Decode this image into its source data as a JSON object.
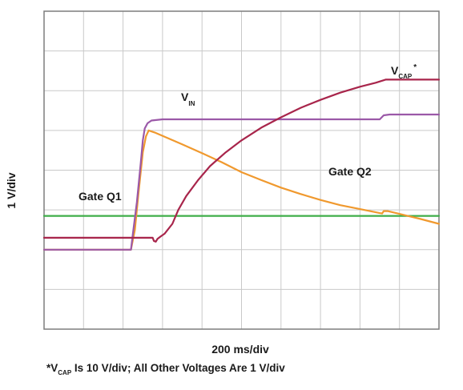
{
  "chart_data": {
    "type": "line",
    "title": "",
    "xlabel": "200 ms/div",
    "ylabel": "1 V/div",
    "grid": true,
    "divisions": {
      "x": 10,
      "y": 8
    },
    "xlim": [
      0,
      10
    ],
    "ylim": [
      0,
      8
    ],
    "series": [
      {
        "name": "V_CAP*",
        "label_main": "V",
        "label_sub": "CAP",
        "label_sup": "*",
        "color": "#a8254b",
        "points": [
          [
            0,
            2.3
          ],
          [
            2.2,
            2.3
          ],
          [
            2.6,
            2.3
          ],
          [
            2.75,
            2.3
          ],
          [
            2.78,
            2.22
          ],
          [
            2.83,
            2.2
          ],
          [
            2.87,
            2.27
          ],
          [
            2.95,
            2.33
          ],
          [
            3.05,
            2.4
          ],
          [
            3.25,
            2.65
          ],
          [
            3.4,
            3.0
          ],
          [
            3.6,
            3.35
          ],
          [
            3.9,
            3.75
          ],
          [
            4.2,
            4.1
          ],
          [
            4.6,
            4.45
          ],
          [
            5.0,
            4.75
          ],
          [
            5.5,
            5.07
          ],
          [
            6.0,
            5.33
          ],
          [
            6.5,
            5.57
          ],
          [
            7.0,
            5.77
          ],
          [
            7.5,
            5.95
          ],
          [
            8.0,
            6.1
          ],
          [
            8.4,
            6.2
          ],
          [
            8.65,
            6.28
          ],
          [
            10,
            6.28
          ]
        ]
      },
      {
        "name": "V_IN",
        "label_main": "V",
        "label_sub": "IN",
        "color": "#9b59a8",
        "points": [
          [
            0,
            2.0
          ],
          [
            2.2,
            2.0
          ],
          [
            2.25,
            2.4
          ],
          [
            2.35,
            3.2
          ],
          [
            2.45,
            4.2
          ],
          [
            2.5,
            4.75
          ],
          [
            2.55,
            5.05
          ],
          [
            2.62,
            5.18
          ],
          [
            2.72,
            5.25
          ],
          [
            3.0,
            5.28
          ],
          [
            8.5,
            5.28
          ],
          [
            8.6,
            5.38
          ],
          [
            8.75,
            5.4
          ],
          [
            10,
            5.4
          ]
        ]
      },
      {
        "name": "Gate Q2",
        "label_main": "Gate Q2",
        "color": "#f0992e",
        "points": [
          [
            0,
            2.0
          ],
          [
            2.2,
            2.0
          ],
          [
            2.3,
            2.5
          ],
          [
            2.4,
            3.5
          ],
          [
            2.5,
            4.45
          ],
          [
            2.58,
            4.85
          ],
          [
            2.65,
            5.0
          ],
          [
            2.8,
            4.95
          ],
          [
            3.1,
            4.82
          ],
          [
            3.5,
            4.65
          ],
          [
            4.0,
            4.43
          ],
          [
            4.5,
            4.2
          ],
          [
            5.0,
            3.95
          ],
          [
            5.5,
            3.75
          ],
          [
            6.0,
            3.56
          ],
          [
            6.5,
            3.4
          ],
          [
            7.0,
            3.25
          ],
          [
            7.5,
            3.12
          ],
          [
            8.0,
            3.02
          ],
          [
            8.5,
            2.92
          ],
          [
            8.56,
            2.91
          ],
          [
            8.6,
            2.97
          ],
          [
            8.7,
            2.97
          ],
          [
            9.0,
            2.9
          ],
          [
            9.5,
            2.78
          ],
          [
            10,
            2.65
          ]
        ]
      },
      {
        "name": "Gate Q1",
        "label_main": "Gate Q1",
        "color": "#3fae49",
        "points": [
          [
            0,
            2.85
          ],
          [
            10,
            2.85
          ]
        ]
      }
    ]
  },
  "footnote": {
    "prefix": "*V",
    "sub": "CAP",
    "text": " Is 10 V/div; All Other Voltages Are 1 V/div"
  }
}
